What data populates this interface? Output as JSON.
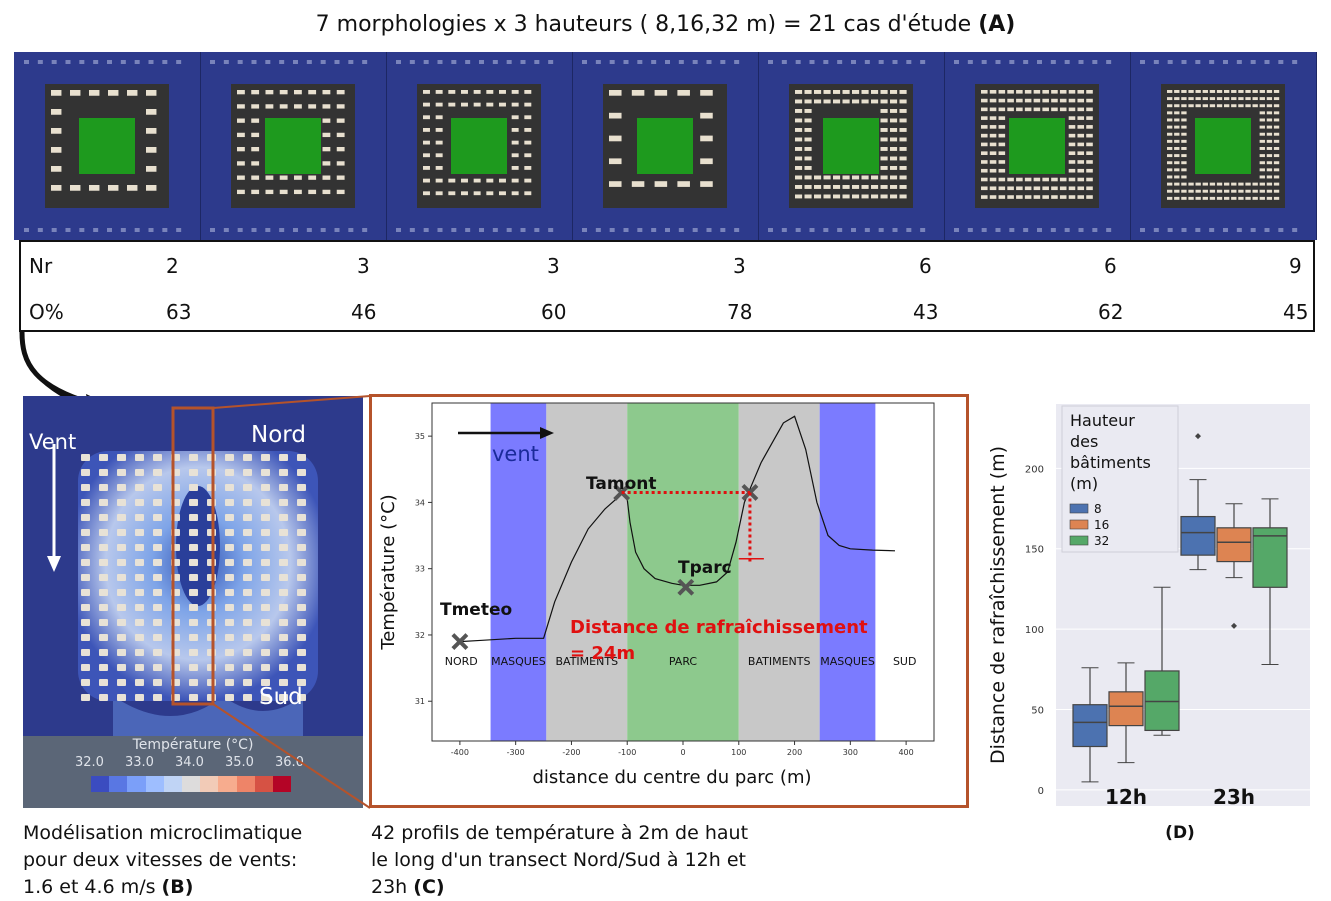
{
  "title": {
    "text": "7 morphologies x 3 hauteurs ( 8,16,32 m) = 21 cas d'étude ",
    "tag": "(A)"
  },
  "table": {
    "nr_label": "Nr",
    "o_label": "O%",
    "nr": [
      "2",
      "3",
      "3",
      "3",
      "6",
      "6",
      "9"
    ],
    "o": [
      "63",
      "46",
      "60",
      "78",
      "43",
      "62",
      "45"
    ]
  },
  "panel_b": {
    "vent": "Vent",
    "nord": "Nord",
    "sud": "Sud",
    "colorbar_title": "Température (°C)",
    "colorbar_ticks": [
      "32.0",
      "33.0",
      "34.0",
      "35.0",
      "36.0"
    ],
    "colorbar_colors": [
      "#3b4cc0",
      "#5977e3",
      "#7b9ff9",
      "#9ebeff",
      "#c0d4f5",
      "#dddcdc",
      "#f2cbb7",
      "#f7ac8e",
      "#ee8468",
      "#d65244",
      "#b40426"
    ],
    "caption_l1": "Modélisation microclimatique",
    "caption_l2": "pour deux vitesses de vents:",
    "caption_l3": "1.6 et 4.6 m/s ",
    "caption_tag": "(B)"
  },
  "panel_c": {
    "ylabel": "Température (°C)",
    "xlabel": "distance du centre du parc (m)",
    "vent": "vent",
    "tamont": "Tamont",
    "tparc": "Tparc",
    "tmeteo": "Tmeteo",
    "distance_l1": "Distance de rafraîchissement",
    "distance_l2": "= 24m",
    "zones": [
      "NORD",
      "MASQUES",
      "BATIMENTS",
      "PARC",
      "BATIMENTS",
      "MASQUES",
      "SUD"
    ],
    "yticks": [
      "31",
      "32",
      "33",
      "34",
      "35"
    ],
    "xticks": [
      "-400",
      "-300",
      "-200",
      "-100",
      "0",
      "100",
      "200",
      "300",
      "400"
    ],
    "caption_l1": "42 profils de température à 2m de haut",
    "caption_l2": "le long d'un transect Nord/Sud à 12h et",
    "caption_l3": "23h ",
    "caption_tag": "(C)"
  },
  "chart_data": {
    "type": "line",
    "xlabel": "distance du centre du parc (m)",
    "ylabel": "Température (°C)",
    "xlim": [
      -450,
      450
    ],
    "ylim": [
      30.4,
      35.5
    ],
    "series": [
      {
        "x": [
          -400,
          -360,
          -300,
          -250,
          -230,
          -200,
          -170,
          -140,
          -120,
          -110,
          -100,
          -95,
          -85,
          -70,
          -50,
          -20,
          0,
          30,
          60,
          80,
          95,
          110,
          120,
          140,
          160,
          180,
          200,
          220,
          240,
          260,
          280,
          300,
          340,
          380
        ],
        "y": [
          31.9,
          31.92,
          31.95,
          31.95,
          32.5,
          33.1,
          33.6,
          33.9,
          34.05,
          34.15,
          34.05,
          33.7,
          33.25,
          33.0,
          32.85,
          32.78,
          32.75,
          32.75,
          32.8,
          32.95,
          33.4,
          34.0,
          34.2,
          34.6,
          34.9,
          35.2,
          35.3,
          34.8,
          34.0,
          33.5,
          33.35,
          33.3,
          33.28,
          33.27
        ]
      }
    ],
    "zones": [
      {
        "label": "NORD",
        "from": -450,
        "to": -345,
        "color": "#ffffff"
      },
      {
        "label": "MASQUES",
        "from": -345,
        "to": -245,
        "color": "#7b7bff"
      },
      {
        "label": "BATIMENTS",
        "from": -245,
        "to": -100,
        "color": "#c8c8c8"
      },
      {
        "label": "PARC",
        "from": -100,
        "to": 100,
        "color": "#8dc98d"
      },
      {
        "label": "BATIMENTS",
        "from": 100,
        "to": 245,
        "color": "#c8c8c8"
      },
      {
        "label": "MASQUES",
        "from": 245,
        "to": 345,
        "color": "#7b7bff"
      },
      {
        "label": "SUD",
        "from": 345,
        "to": 450,
        "color": "#ffffff"
      }
    ]
  },
  "panel_d": {
    "ylabel": "Distance de rafraîchissement (m)",
    "legend_title": [
      "Hauteur",
      "des",
      "bâtiments",
      "(m)"
    ],
    "legend_items": [
      {
        "label": "8",
        "color": "#4c72b0"
      },
      {
        "label": "16",
        "color": "#dd8452"
      },
      {
        "label": "32",
        "color": "#55a868"
      }
    ],
    "yticks": [
      "0",
      "50",
      "100",
      "150",
      "200"
    ],
    "groups": [
      "12h",
      "23h"
    ],
    "tag": "(D)",
    "boxes": [
      {
        "group": "12h",
        "h": "8",
        "min": 5,
        "q1": 27,
        "med": 42,
        "q3": 53,
        "max": 76,
        "fl": []
      },
      {
        "group": "12h",
        "h": "16",
        "min": 17,
        "q1": 40,
        "med": 52,
        "q3": 61,
        "max": 79,
        "fl": []
      },
      {
        "group": "12h",
        "h": "32",
        "min": 34,
        "q1": 37,
        "med": 55,
        "q3": 74,
        "max": 126,
        "fl": []
      },
      {
        "group": "23h",
        "h": "8",
        "min": 137,
        "q1": 146,
        "med": 160,
        "q3": 170,
        "max": 193,
        "fl": [
          220
        ]
      },
      {
        "group": "23h",
        "h": "16",
        "min": 132,
        "q1": 142,
        "med": 154,
        "q3": 163,
        "max": 178,
        "fl": [
          102
        ]
      },
      {
        "group": "23h",
        "h": "32",
        "min": 78,
        "q1": 126,
        "med": 158,
        "q3": 163,
        "max": 181,
        "fl": []
      }
    ]
  },
  "colors": {
    "city_bg": "#2d3a8c",
    "asphalt": "#333333",
    "park": "#1e9a1e",
    "building": "#e8e0cf",
    "frame": "#b5532b"
  }
}
